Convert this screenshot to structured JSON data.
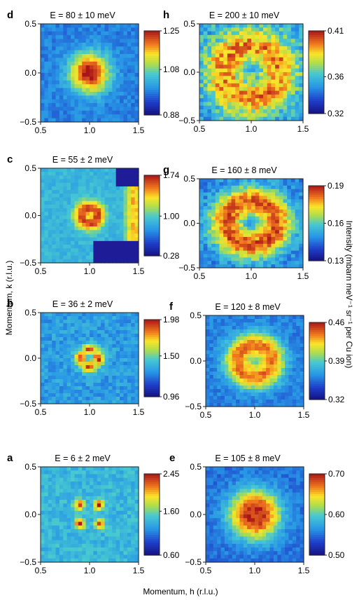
{
  "figure": {
    "xlabel": "Momentum, h (r.l.u.)",
    "ylabel": "Momentum, k (r.l.u.)",
    "cbar_label": "Intensity (mbarn meV⁻¹ sr⁻¹ per Cu ion)"
  },
  "chart_data": [
    {
      "type": "heatmap",
      "panel": "d",
      "title": "E = 80 ± 10 meV",
      "xlim": [
        0.5,
        1.5
      ],
      "ylim": [
        -0.5,
        0.5
      ],
      "xticks": [
        "0.5",
        "1.0",
        "1.5"
      ],
      "yticks": [
        "0.5",
        "0.0",
        "−0.5"
      ],
      "colorbar": {
        "min": 0.88,
        "mid": 1.08,
        "max": 1.25,
        "ticks": [
          "1.25",
          "1.08",
          "0.88"
        ]
      },
      "pattern": "central filled disk"
    },
    {
      "type": "heatmap",
      "panel": "c",
      "title": "E = 55 ± 2 meV",
      "xlim": [
        0.5,
        1.5
      ],
      "ylim": [
        -0.5,
        0.5
      ],
      "xticks": [
        "0.5",
        "1.0",
        "1.5"
      ],
      "yticks": [
        "0.5",
        "0.0",
        "−0.5"
      ],
      "colorbar": {
        "min": 0.28,
        "mid": 1.0,
        "max": 1.74,
        "ticks": [
          "1.74",
          "1.00",
          "0.28"
        ]
      },
      "pattern": "small ring, masked corners"
    },
    {
      "type": "heatmap",
      "panel": "b",
      "title": "E = 36 ± 2 meV",
      "xlim": [
        0.5,
        1.5
      ],
      "ylim": [
        -0.5,
        0.5
      ],
      "xticks": [
        "0.5",
        "1.0",
        "1.5"
      ],
      "yticks": [
        "0.5",
        "0.0",
        "−0.5"
      ],
      "colorbar": {
        "min": 0.96,
        "mid": 1.5,
        "max": 1.98,
        "ticks": [
          "1.98",
          "1.50",
          "0.96"
        ]
      },
      "pattern": "four-fold ring"
    },
    {
      "type": "heatmap",
      "panel": "a",
      "title": "E = 6 ± 2 meV",
      "xlim": [
        0.5,
        1.5
      ],
      "ylim": [
        -0.5,
        0.5
      ],
      "xticks": [
        "0.5",
        "1.0",
        "1.5"
      ],
      "yticks": [
        "0.5",
        "0.0",
        "−0.5"
      ],
      "colorbar": {
        "min": 0.6,
        "mid": 1.6,
        "max": 2.45,
        "ticks": [
          "2.45",
          "1.60",
          "0.60"
        ]
      },
      "pattern": "four incommensurate spots"
    },
    {
      "type": "heatmap",
      "panel": "h",
      "title": "E = 200 ± 10 meV",
      "xlim": [
        0.5,
        1.5
      ],
      "ylim": [
        -0.5,
        0.5
      ],
      "xticks": [
        "0.5",
        "1.0",
        "1.5"
      ],
      "yticks": [
        "0.5",
        "0.0",
        "−0.5"
      ],
      "colorbar": {
        "min": 0.32,
        "mid": 0.36,
        "max": 0.41,
        "ticks": [
          "0.41",
          "0.36",
          "0.32"
        ]
      },
      "pattern": "large diffuse ring"
    },
    {
      "type": "heatmap",
      "panel": "g",
      "title": "E = 160 ± 8 meV",
      "xlim": [
        0.5,
        1.5
      ],
      "ylim": [
        -0.5,
        0.5
      ],
      "xticks": [
        "0.5",
        "1.0",
        "1.5"
      ],
      "yticks": [
        "0.5",
        "0.0",
        "−0.5"
      ],
      "colorbar": {
        "min": 0.13,
        "mid": 0.16,
        "max": 0.19,
        "ticks": [
          "0.19",
          "0.16",
          "0.13"
        ]
      },
      "pattern": "large ring"
    },
    {
      "type": "heatmap",
      "panel": "f",
      "title": "E = 120 ± 8 meV",
      "xlim": [
        0.5,
        1.5
      ],
      "ylim": [
        -0.5,
        0.5
      ],
      "xticks": [
        "0.5",
        "1.0",
        "1.5"
      ],
      "yticks": [
        "0.5",
        "0.0",
        "−0.5"
      ],
      "colorbar": {
        "min": 0.32,
        "mid": 0.39,
        "max": 0.46,
        "ticks": [
          "0.46",
          "0.39",
          "0.32"
        ]
      },
      "pattern": "ring"
    },
    {
      "type": "heatmap",
      "panel": "e",
      "title": "E = 105 ± 8 meV",
      "xlim": [
        0.5,
        1.5
      ],
      "ylim": [
        -0.5,
        0.5
      ],
      "xticks": [
        "0.5",
        "1.0",
        "1.5"
      ],
      "yticks": [
        "0.5",
        "0.0",
        "−0.5"
      ],
      "colorbar": {
        "min": 0.5,
        "mid": 0.6,
        "max": 0.7,
        "ticks": [
          "0.70",
          "0.60",
          "0.50"
        ]
      },
      "pattern": "filled disk"
    }
  ]
}
